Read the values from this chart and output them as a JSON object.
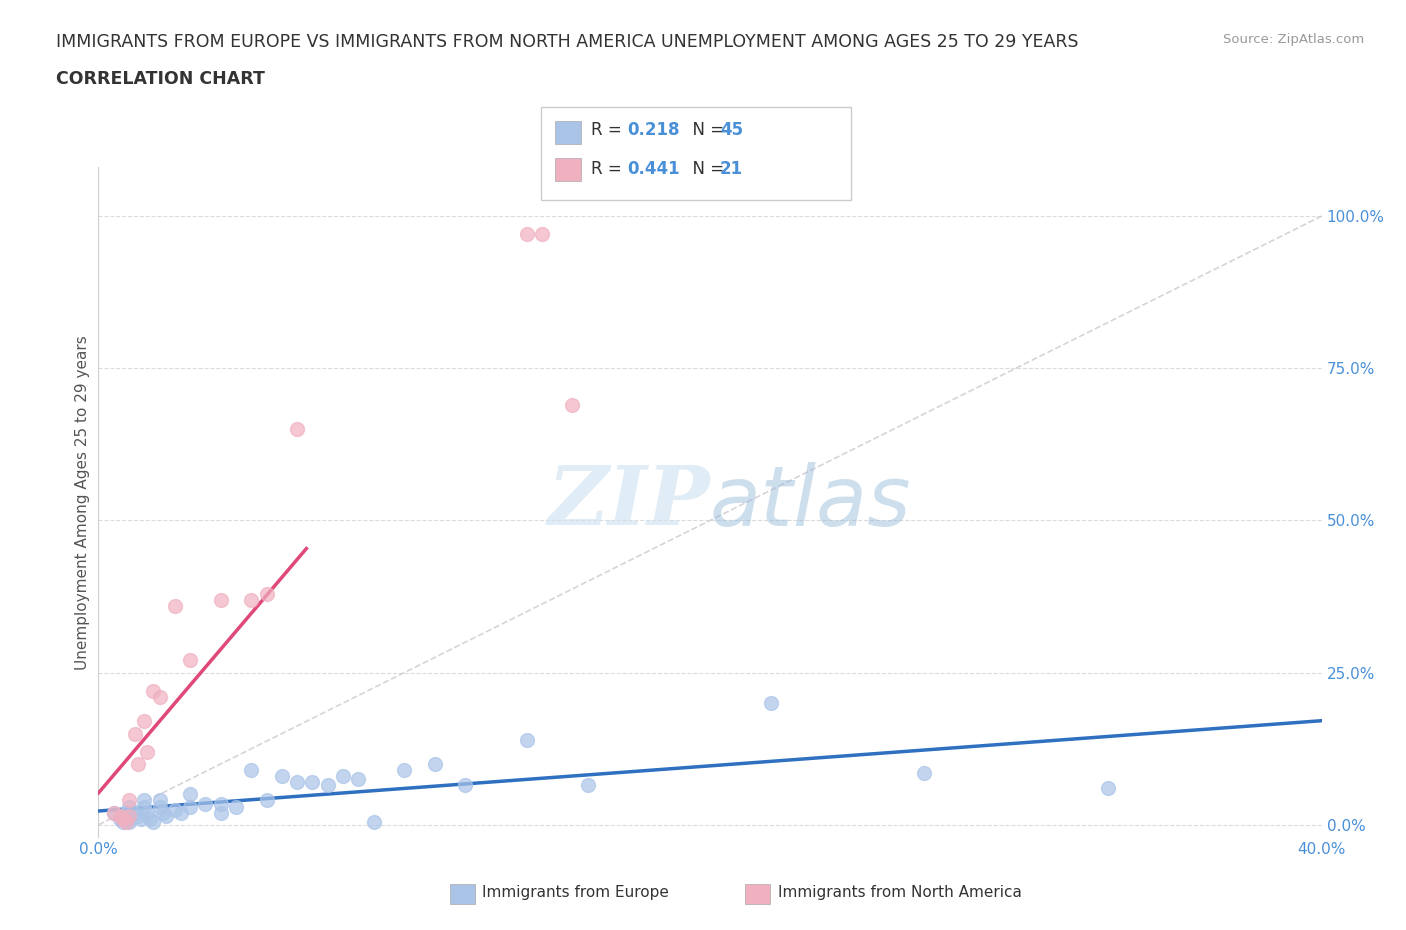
{
  "title_line1": "IMMIGRANTS FROM EUROPE VS IMMIGRANTS FROM NORTH AMERICA UNEMPLOYMENT AMONG AGES 25 TO 29 YEARS",
  "title_line2": "CORRELATION CHART",
  "source": "Source: ZipAtlas.com",
  "ylabel": "Unemployment Among Ages 25 to 29 years",
  "ytick_labels": [
    "100.0%",
    "75.0%",
    "50.0%",
    "25.0%",
    "0.0%"
  ],
  "ytick_values": [
    1.0,
    0.75,
    0.5,
    0.25,
    0.0
  ],
  "xtick_labels": [
    "0.0%",
    "40.0%"
  ],
  "xtick_values": [
    0.0,
    0.4
  ],
  "xlim": [
    0.0,
    0.4
  ],
  "ylim": [
    -0.02,
    1.08
  ],
  "europe_color": "#aac4e8",
  "north_america_color": "#f0b0c0",
  "europe_R": 0.218,
  "europe_N": 45,
  "north_america_R": 0.441,
  "north_america_N": 21,
  "legend_label_europe": "Immigrants from Europe",
  "legend_label_na": "Immigrants from North America",
  "diagonal_color": "#d0c8d0",
  "europe_trend_color": "#3070c0",
  "na_trend_color": "#e04878",
  "title_color": "#333333",
  "axis_label_color": "#4a90d9",
  "watermark_color": "#cce0f0",
  "europe_x": [
    0.005,
    0.007,
    0.008,
    0.009,
    0.01,
    0.01,
    0.01,
    0.01,
    0.012,
    0.013,
    0.014,
    0.015,
    0.015,
    0.016,
    0.017,
    0.018,
    0.02,
    0.02,
    0.021,
    0.022,
    0.025,
    0.027,
    0.03,
    0.03,
    0.035,
    0.04,
    0.04,
    0.045,
    0.05,
    0.055,
    0.06,
    0.065,
    0.07,
    0.075,
    0.08,
    0.085,
    0.09,
    0.1,
    0.11,
    0.12,
    0.14,
    0.16,
    0.22,
    0.27,
    0.33
  ],
  "europe_y": [
    0.02,
    0.01,
    0.005,
    0.02,
    0.03,
    0.015,
    0.01,
    0.005,
    0.02,
    0.015,
    0.01,
    0.04,
    0.03,
    0.02,
    0.01,
    0.005,
    0.04,
    0.03,
    0.02,
    0.015,
    0.025,
    0.02,
    0.05,
    0.03,
    0.035,
    0.035,
    0.02,
    0.03,
    0.09,
    0.04,
    0.08,
    0.07,
    0.07,
    0.065,
    0.08,
    0.075,
    0.005,
    0.09,
    0.1,
    0.065,
    0.14,
    0.065,
    0.2,
    0.085,
    0.06
  ],
  "na_x": [
    0.005,
    0.007,
    0.008,
    0.009,
    0.01,
    0.01,
    0.012,
    0.013,
    0.015,
    0.016,
    0.018,
    0.02,
    0.025,
    0.03,
    0.04,
    0.05,
    0.055,
    0.065,
    0.14,
    0.145,
    0.155
  ],
  "na_y": [
    0.02,
    0.015,
    0.01,
    0.005,
    0.04,
    0.015,
    0.15,
    0.1,
    0.17,
    0.12,
    0.22,
    0.21,
    0.36,
    0.27,
    0.37,
    0.37,
    0.38,
    0.65,
    0.97,
    0.97,
    0.69
  ],
  "na_trend_x_end": 0.068,
  "grid_color": "#d8d8d8",
  "grid_linestyle": "--",
  "spine_color": "#d0d0d0"
}
